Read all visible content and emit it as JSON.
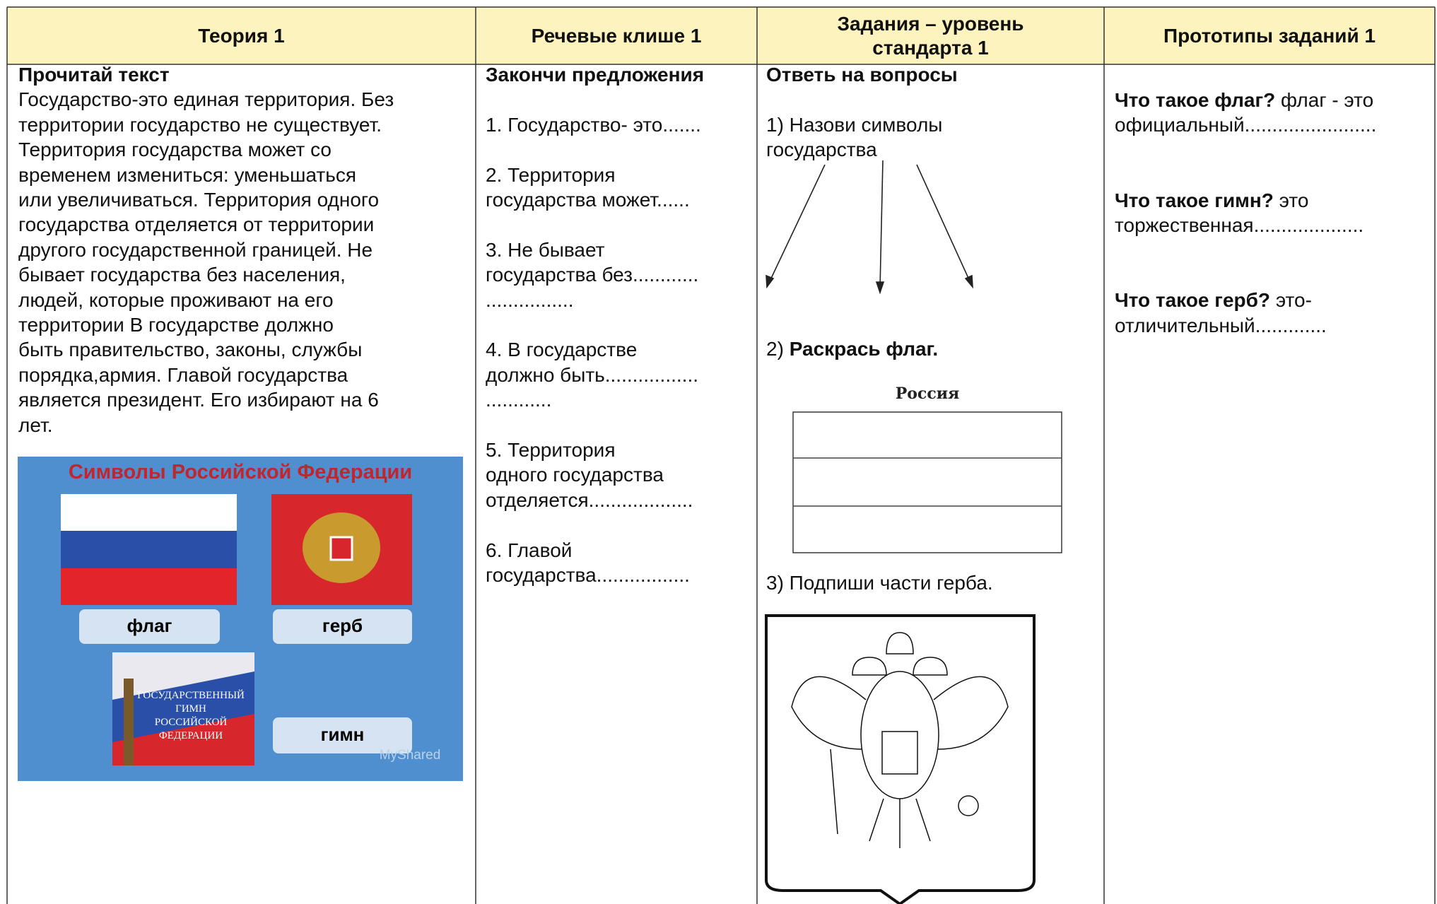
{
  "table": {
    "headers": [
      [
        "Теория 1"
      ],
      [
        "Речевые  клише  1"
      ],
      [
        "Задания – уровень",
        "стандарта  1"
      ],
      [
        "Прототипы заданий 1"
      ]
    ],
    "theory": {
      "heading": "Прочитай текст",
      "lines": [
        "Государство-это единая территория. Без",
        "территории государство не существует.",
        "Территория государства может со",
        "временем измениться: уменьшаться",
        "или увеличиваться. Территория одного",
        "государства отделяется от территории",
        "другого государственной границей. Не",
        "бывает государства без населения,",
        "людей, которые проживают на его",
        "территории  В государстве должно",
        "быть правительство, законы, службы",
        "порядка,армия. Главой государства",
        "является президент. Его избирают на 6",
        "лет."
      ],
      "image": {
        "title": "Символы Российской Федерации",
        "flag": "флаг",
        "coat": "герб",
        "anthem": "гимн",
        "anthem_cover": [
          "ГОСУДАРСТВЕННЫЙ",
          "ГИМН",
          "РОССИЙСКОЙ",
          "ФЕДЕРАЦИИ"
        ],
        "watermark": "MyShared"
      }
    },
    "phrases": {
      "heading": "Закончи предложения",
      "items": [
        [
          "1. Государство- это......."
        ],
        [
          "2. Территория",
          "государства может......"
        ],
        [
          "3. Не бывает",
          "государства без............",
          "................"
        ],
        [
          "4. В государстве",
          "должно быть.................",
          "............"
        ],
        [
          "5. Территория",
          "одного государства",
          "отделяется..................."
        ],
        [
          "6. Главой",
          "государства................."
        ]
      ]
    },
    "tasks": {
      "heading": "Ответь на вопросы",
      "task1": [
        "1) Назови символы",
        "государства"
      ],
      "task2": {
        "number": "2)",
        "text": "Раскрась  флаг."
      },
      "flag_caption": "Россия",
      "task3": "3) Подпиши части герба."
    },
    "prototypes": {
      "items": [
        {
          "question": "Что такое флаг?",
          "answer": "флаг - это официальный........................"
        },
        {
          "question": "Что такое гимн?",
          "answer": "это торжественная...................."
        },
        {
          "question": "Что такое герб?",
          "answer": "это-отличительный............."
        }
      ]
    }
  }
}
